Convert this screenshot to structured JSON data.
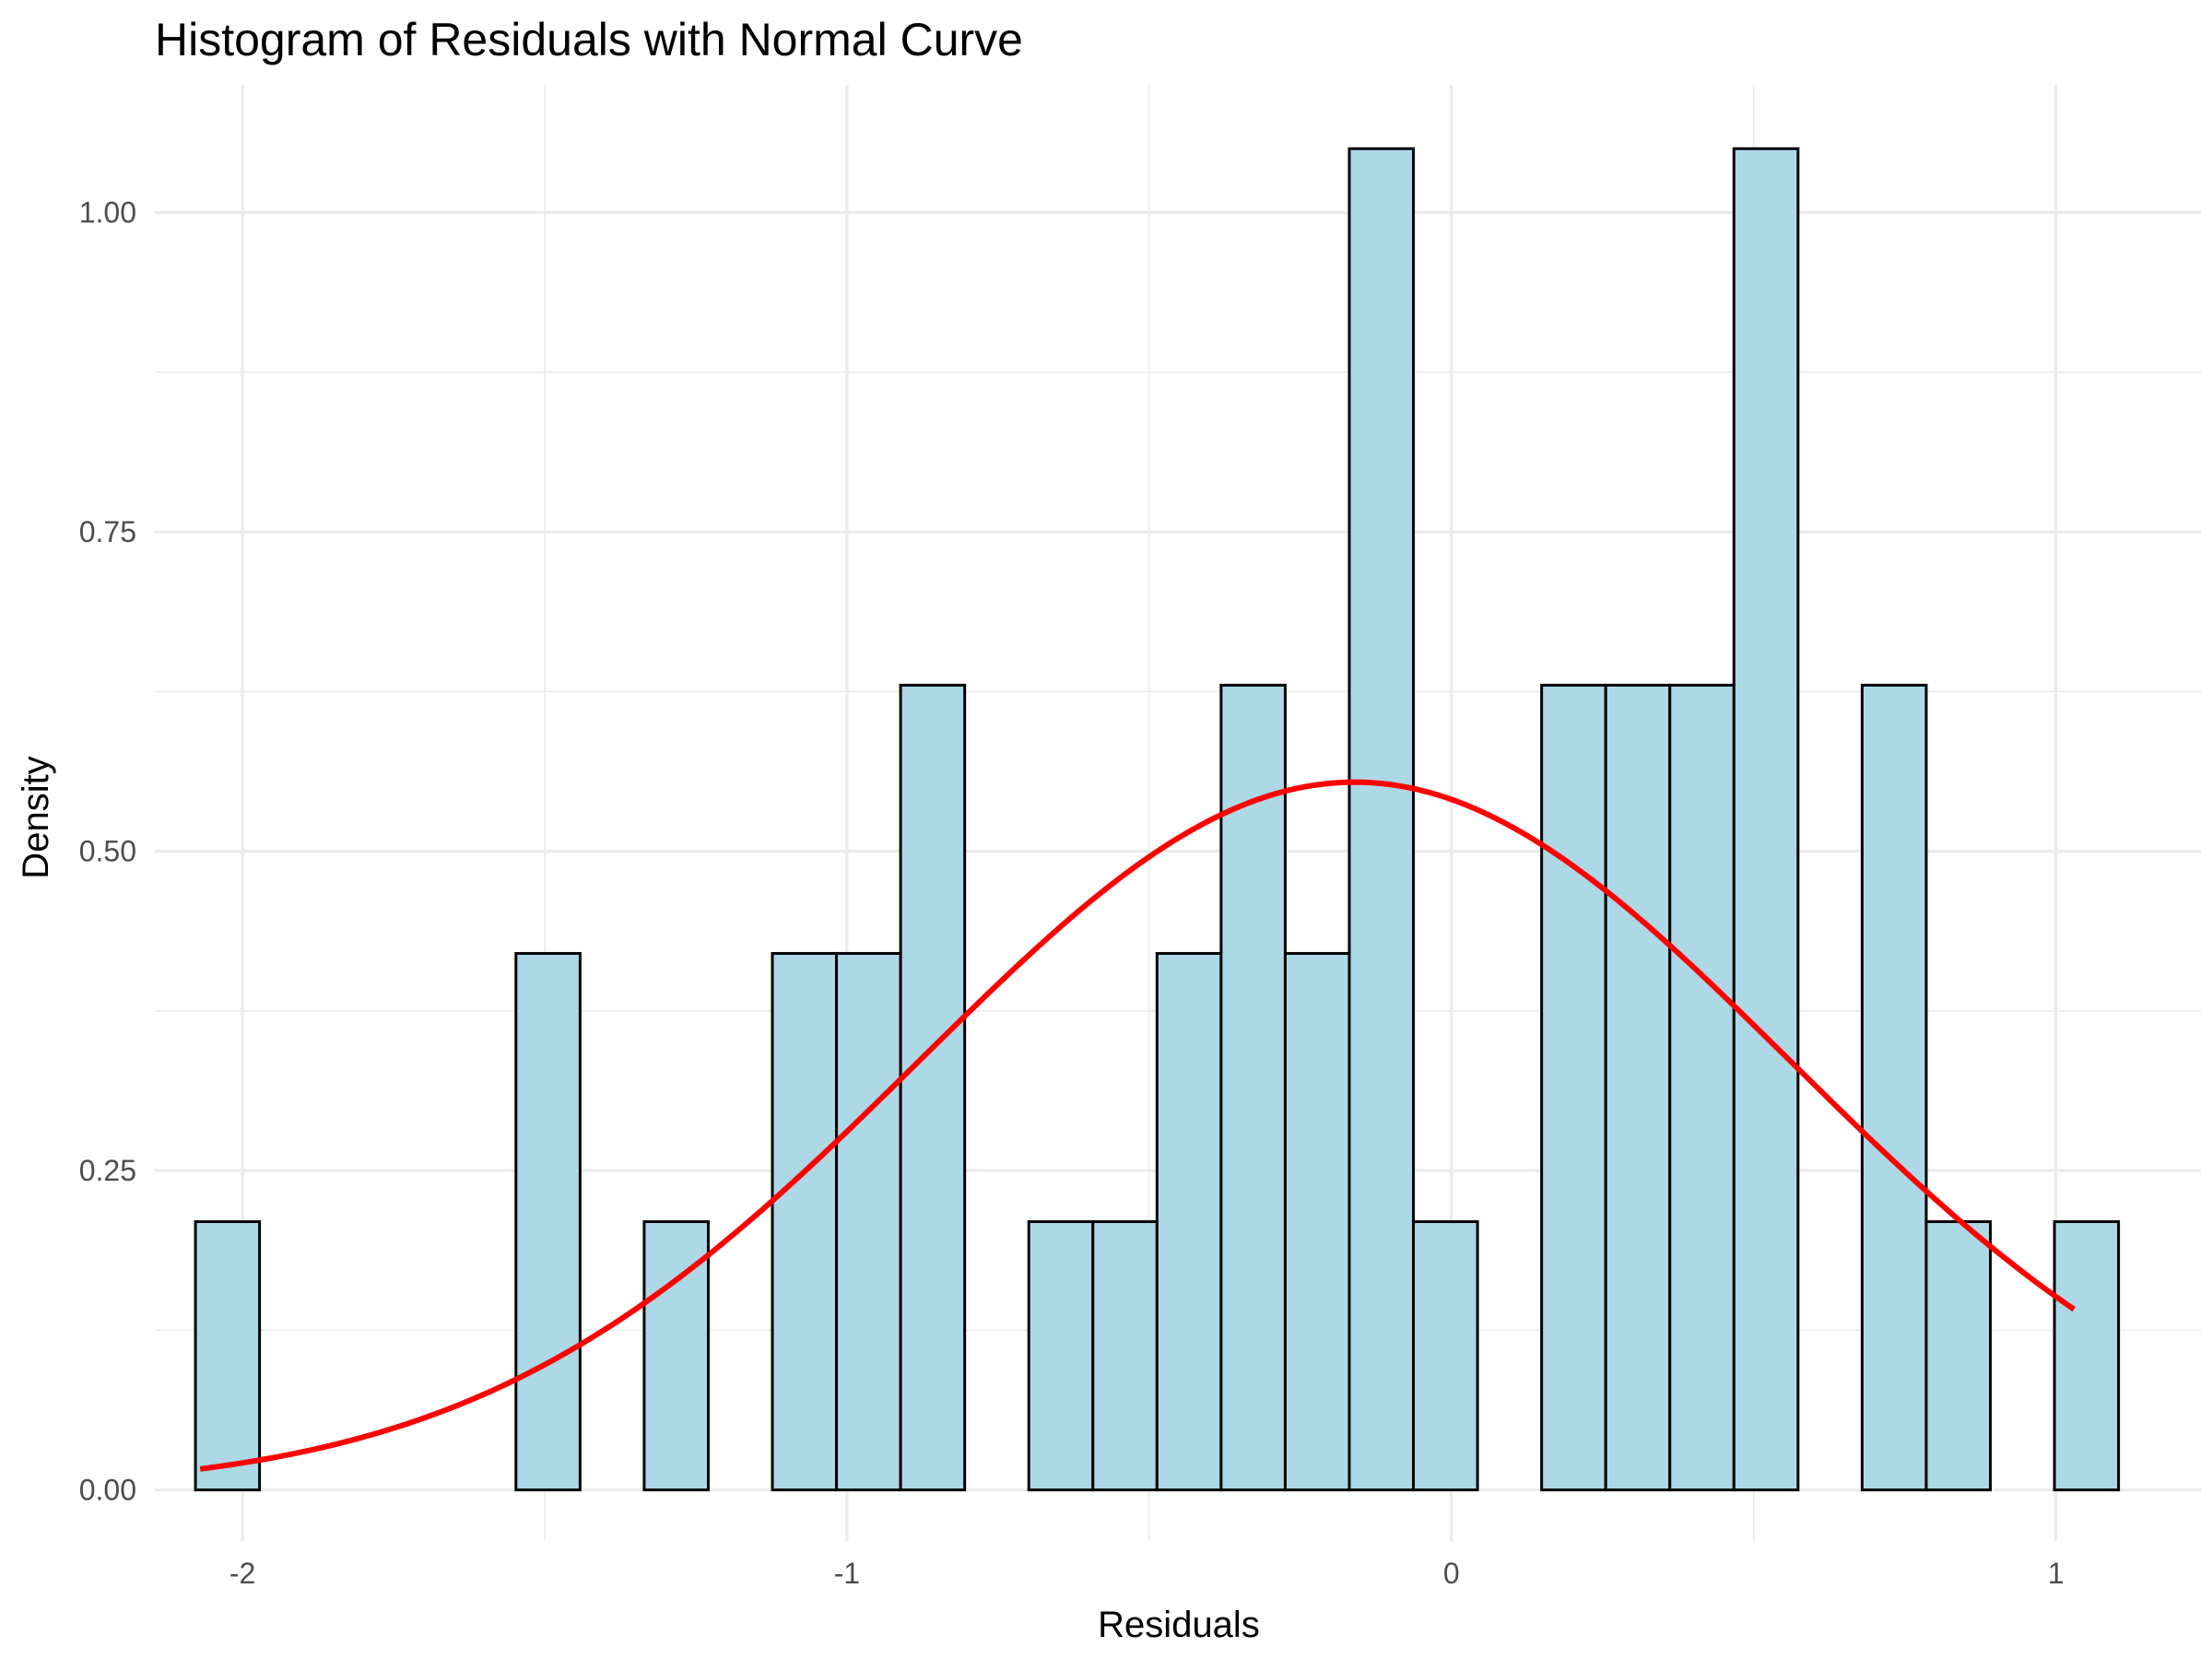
{
  "chart_data": {
    "type": "bar",
    "title": "Histogram of Residuals with Normal Curve",
    "xlabel": "Residuals",
    "ylabel": "Density",
    "xlim": [
      -2.145,
      1.24
    ],
    "ylim": [
      -0.04,
      1.1
    ],
    "xticks": [
      {
        "value": -2,
        "label": "-2"
      },
      {
        "value": -1,
        "label": "-1"
      },
      {
        "value": 0,
        "label": "0"
      },
      {
        "value": 1,
        "label": "1"
      }
    ],
    "xminor": [
      -1.5,
      -0.5,
      0.5
    ],
    "yticks": [
      {
        "value": 0,
        "label": "0.00"
      },
      {
        "value": 0.25,
        "label": "0.25"
      },
      {
        "value": 0.5,
        "label": "0.50"
      },
      {
        "value": 0.75,
        "label": "0.75"
      },
      {
        "value": 1.0,
        "label": "1.00"
      }
    ],
    "yminor": [
      0.125,
      0.375,
      0.625,
      0.875
    ],
    "grid": true,
    "bins": {
      "start": -2.0778,
      "width": 0.10605,
      "densities": [
        0.21,
        0,
        0,
        0,
        0,
        0.42,
        0,
        0.21,
        0,
        0.42,
        0.42,
        0.63,
        0,
        0.21,
        0.21,
        0.42,
        0.63,
        0.42,
        1.05,
        0.21,
        0,
        0.63,
        0.63,
        0.63,
        1.05,
        0,
        0.63,
        0.21,
        0,
        0.21
      ]
    },
    "curve": {
      "type": "normal",
      "mean": -0.16,
      "sd": 0.72,
      "x_range": [
        -2.07,
        1.03
      ]
    },
    "colors": {
      "bar_fill": "#add8e6",
      "bar_stroke": "#000000",
      "curve": "#ff0000",
      "grid": "#ebebeb"
    }
  }
}
